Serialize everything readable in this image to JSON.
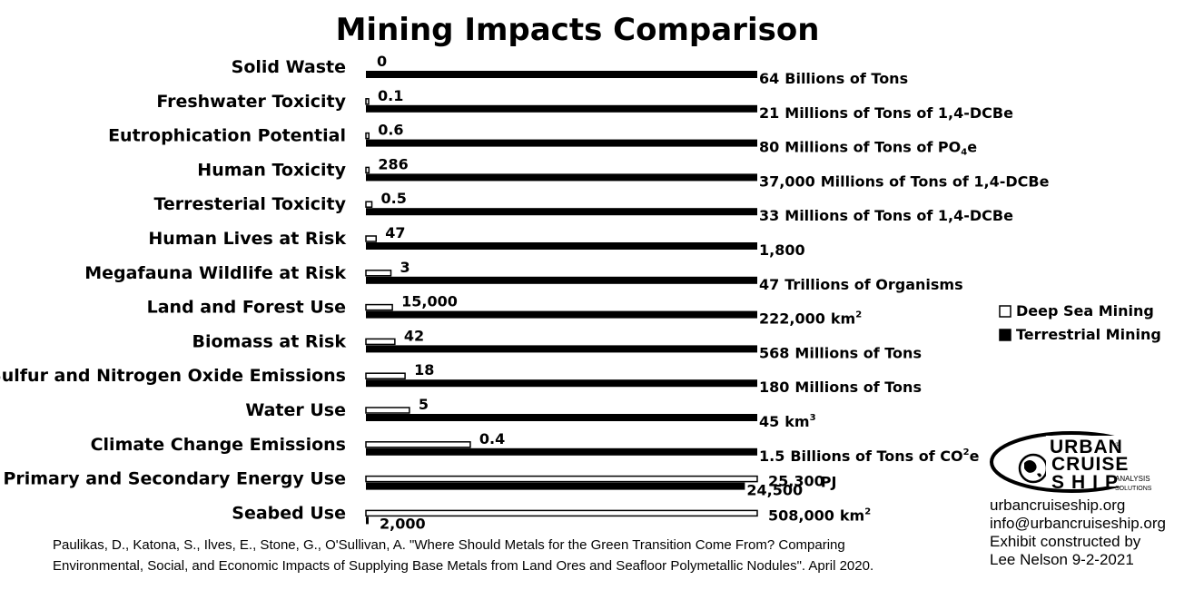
{
  "chart_data": {
    "type": "bar",
    "orientation": "horizontal",
    "title": "Mining Impacts Comparison",
    "categories": [
      "Solid Waste",
      "Freshwater Toxicity",
      "Eutrophication Potential",
      "Human Toxicity",
      "Terresterial Toxicity",
      "Human Lives at Risk",
      "Megafauna Wildlife at Risk",
      "Land and Forest Use",
      "Biomass at Risk",
      "Sulfur and Nitrogen Oxide Emissions",
      "Water Use",
      "Climate Change Emissions",
      "Primary and Secondary Energy Use",
      "Seabed Use"
    ],
    "scale": "each category normalized to the larger of the two values",
    "series": [
      {
        "name": "Deep Sea Mining",
        "color": "#ffffff",
        "values": [
          0,
          0.1,
          0.6,
          286,
          0.5,
          47,
          3,
          15000,
          42,
          18,
          5,
          0.4,
          25300,
          508000
        ],
        "labels": [
          "0",
          "0.1",
          "0.6",
          "286",
          "0.5",
          "47",
          "3",
          "15,000",
          "42",
          "18",
          "5",
          "0.4",
          "25,300",
          "508,000"
        ]
      },
      {
        "name": "Terrestrial Mining",
        "color": "#000000",
        "values": [
          64,
          21,
          80,
          37000,
          33,
          1800,
          47,
          222000,
          568,
          180,
          45,
          1.5,
          24500,
          2000
        ],
        "labels": [
          "64",
          "21",
          "80",
          "37,000",
          "33",
          "1,800",
          "47",
          "222,000",
          "568",
          "180",
          "45",
          "1.5",
          "24,500",
          "2,000"
        ]
      }
    ],
    "units": [
      {
        "text": "Billions of Tons",
        "sup": "",
        "sub": "",
        "tail": ""
      },
      {
        "text": "Millions of Tons of 1,4-DCBe",
        "sup": "",
        "sub": "",
        "tail": ""
      },
      {
        "text": "Millions of Tons of PO",
        "sup": "",
        "sub": "4",
        "tail": "e"
      },
      {
        "text": "Millions of Tons of 1,4-DCBe",
        "sup": "",
        "sub": "",
        "tail": ""
      },
      {
        "text": "Millions of Tons of 1,4-DCBe",
        "sup": "",
        "sub": "",
        "tail": ""
      },
      {
        "text": "",
        "sup": "",
        "sub": "",
        "tail": ""
      },
      {
        "text": "Trillions of Organisms",
        "sup": "",
        "sub": "",
        "tail": ""
      },
      {
        "text": "km",
        "sup": "2",
        "sub": "",
        "tail": ""
      },
      {
        "text": "Millions of Tons",
        "sup": "",
        "sub": "",
        "tail": ""
      },
      {
        "text": "Millions of Tons",
        "sup": "",
        "sub": "",
        "tail": ""
      },
      {
        "text": "km",
        "sup": "3",
        "sub": "",
        "tail": ""
      },
      {
        "text": "Billions of Tons of CO",
        "sup": "2",
        "sub": "",
        "tail": "e"
      },
      {
        "text": "PJ",
        "sup": "",
        "sub": "",
        "tail": ""
      },
      {
        "text": "km",
        "sup": "2",
        "sub": "",
        "tail": ""
      }
    ],
    "legend_position": "right",
    "grid": false
  },
  "source_lines": [
    "Paulikas, D., Katona, S., Ilves, E., Stone, G., O'Sullivan, A. \"Where Should Metals for the Green Transition Come From? Comparing",
    "Environmental, Social, and Economic Impacts of Supplying Base Metals from Land Ores and Seafloor Polymetallic Nodules\". April 2020."
  ],
  "brand": {
    "logo_line1": "URBAN",
    "logo_line2": "CRUISE",
    "logo_line3": "SHIP",
    "logo_tag1": "ANALYSIS",
    "logo_tag2": "SOLUTIONS",
    "logo_mark": "®",
    "website": "urbancruiseship.org",
    "email": "info@urbancruiseship.org",
    "credit_line1": "Exhibit constructed by",
    "credit_line2": "Lee Nelson 9-2-2021"
  }
}
